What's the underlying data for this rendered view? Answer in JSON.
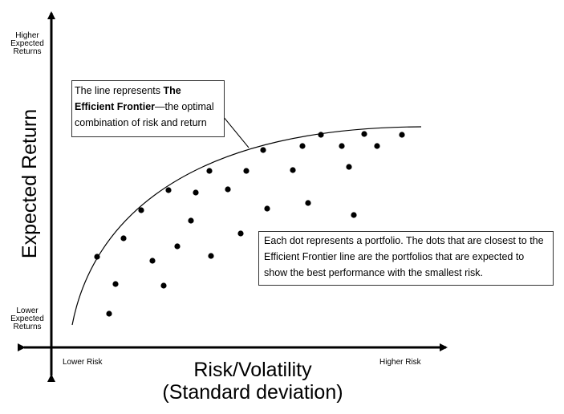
{
  "y_top_label": [
    "Higher",
    "Expected",
    "Returns"
  ],
  "y_bottom_label": [
    "Lower",
    "Expected",
    "Returns"
  ],
  "y_axis_title": "Expected Return",
  "x_left_label": "Lower Risk",
  "x_right_label": "Higher Risk",
  "x_axis_title_line1": "Risk/Volatility",
  "x_axis_title_line2": "(Standard deviation)",
  "frontier_callout": {
    "text_before": "The line represents ",
    "bold": "The Efficient Frontier",
    "text_after": "—the optimal combination of risk and return"
  },
  "dots_callout": "Each dot represents a portfolio. The dots that are closest to the Efficient Frontier line are the portfolios that are expected to show the best performance with the smallest risk.",
  "colors": {
    "ink": "#000000",
    "box_border": "#333333"
  }
}
